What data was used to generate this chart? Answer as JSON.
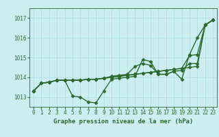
{
  "title": "Graphe pression niveau de la mer (hPa)",
  "ylim": [
    1012.5,
    1017.5
  ],
  "xlim": [
    -0.5,
    23.5
  ],
  "yticks": [
    1013,
    1014,
    1015,
    1016,
    1017
  ],
  "background_color": "#cceef0",
  "grid_color": "#aadddd",
  "line_color": "#2d6a2d",
  "series": [
    [
      1013.3,
      1013.7,
      1013.75,
      1013.85,
      1013.85,
      1013.05,
      1013.0,
      1012.75,
      1012.7,
      1013.3,
      1013.9,
      1013.95,
      1014.0,
      1014.05,
      1014.9,
      1014.8,
      1014.15,
      1014.15,
      1014.3,
      1013.9,
      1015.15,
      1016.0,
      1016.65,
      1016.9
    ],
    [
      1013.3,
      1013.7,
      1013.75,
      1013.85,
      1013.85,
      1013.85,
      1013.85,
      1013.9,
      1013.9,
      1013.95,
      1014.05,
      1014.1,
      1014.15,
      1014.55,
      1014.7,
      1014.6,
      1014.15,
      1014.15,
      1014.3,
      1014.35,
      1014.7,
      1014.7,
      1016.65,
      1016.9
    ],
    [
      1013.3,
      1013.7,
      1013.75,
      1013.85,
      1013.85,
      1013.85,
      1013.85,
      1013.9,
      1013.9,
      1013.95,
      1014.0,
      1014.05,
      1014.1,
      1014.15,
      1014.2,
      1014.25,
      1014.3,
      1014.35,
      1014.4,
      1014.45,
      1015.1,
      1015.15,
      1016.65,
      1016.9
    ],
    [
      1013.3,
      1013.7,
      1013.75,
      1013.85,
      1013.85,
      1013.85,
      1013.85,
      1013.9,
      1013.9,
      1013.95,
      1014.0,
      1014.05,
      1014.1,
      1014.15,
      1014.2,
      1014.25,
      1014.3,
      1014.35,
      1014.4,
      1014.45,
      1014.5,
      1014.55,
      1016.65,
      1016.9
    ]
  ],
  "marker": "D",
  "marker_size": 2.5,
  "line_width": 1.0,
  "font_color": "#2d6a2d",
  "font_size_label": 6.5,
  "font_size_tick": 5.5
}
